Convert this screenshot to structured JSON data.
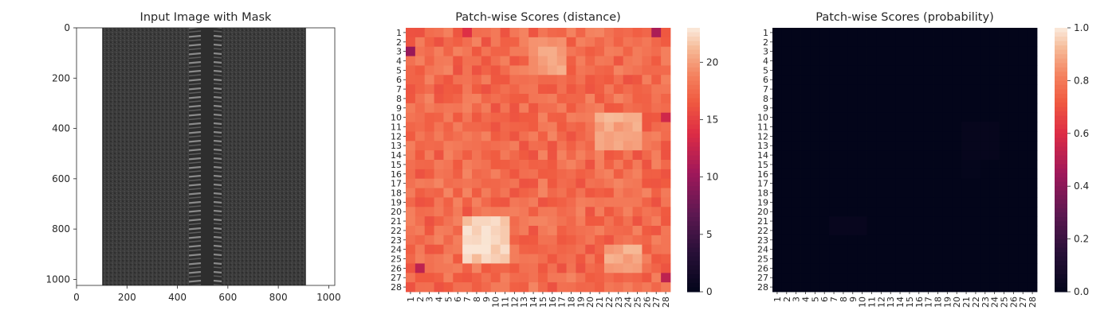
{
  "figure": {
    "panels": [
      {
        "title": "Input Image with Mask"
      },
      {
        "title": "Patch-wise Scores (distance)"
      },
      {
        "title": "Patch-wise Scores (probability)"
      }
    ]
  },
  "chart_data": [
    {
      "type": "image",
      "title": "Input Image with Mask",
      "xlim": [
        0,
        1024
      ],
      "ylim": [
        1024,
        0
      ],
      "x_ticks": [
        0,
        200,
        400,
        600,
        800,
        1000
      ],
      "y_ticks": [
        0,
        200,
        400,
        600,
        800,
        1000
      ],
      "image_subject": "black zipper tape with metal coil teeth down the center",
      "content_x_range": [
        105,
        905
      ],
      "coil_x_range": [
        445,
        575
      ]
    },
    {
      "type": "heatmap",
      "title": "Patch-wise Scores (distance)",
      "x_categories": [
        "1",
        "2",
        "3",
        "4",
        "5",
        "6",
        "7",
        "8",
        "9",
        "10",
        "11",
        "12",
        "13",
        "14",
        "15",
        "16",
        "17",
        "18",
        "19",
        "20",
        "21",
        "22",
        "23",
        "24",
        "25",
        "26",
        "27",
        "28"
      ],
      "y_categories": [
        "1",
        "2",
        "3",
        "4",
        "5",
        "6",
        "7",
        "8",
        "9",
        "10",
        "11",
        "12",
        "13",
        "14",
        "15",
        "16",
        "17",
        "18",
        "19",
        "20",
        "21",
        "22",
        "23",
        "24",
        "25",
        "26",
        "27",
        "28"
      ],
      "colorscale": "rocket",
      "vmin": 0,
      "vmax": 23,
      "colorbar_ticks": [
        0,
        5,
        10,
        15,
        20
      ],
      "base_value": 17.5,
      "high_regions": [
        {
          "rows": [
            21,
            25
          ],
          "cols": [
            7,
            11
          ],
          "value": 22
        },
        {
          "rows": [
            10,
            13
          ],
          "cols": [
            21,
            25
          ],
          "value": 20.5
        },
        {
          "rows": [
            2,
            5
          ],
          "cols": [
            14,
            17
          ],
          "value": 20
        },
        {
          "rows": [
            24,
            26
          ],
          "cols": [
            22,
            25
          ],
          "value": 20.5
        }
      ],
      "low_cells": [
        {
          "row": 3,
          "col": 1,
          "value": 10
        },
        {
          "row": 26,
          "col": 2,
          "value": 12
        },
        {
          "row": 1,
          "col": 27,
          "value": 11
        },
        {
          "row": 10,
          "col": 28,
          "value": 13
        },
        {
          "row": 27,
          "col": 28,
          "value": 12
        },
        {
          "row": 1,
          "col": 7,
          "value": 14
        }
      ]
    },
    {
      "type": "heatmap",
      "title": "Patch-wise Scores (probability)",
      "x_categories": [
        "1",
        "2",
        "3",
        "4",
        "5",
        "6",
        "7",
        "8",
        "9",
        "10",
        "11",
        "12",
        "13",
        "14",
        "15",
        "16",
        "17",
        "18",
        "19",
        "20",
        "21",
        "22",
        "23",
        "24",
        "25",
        "26",
        "27",
        "28"
      ],
      "y_categories": [
        "1",
        "2",
        "3",
        "4",
        "5",
        "6",
        "7",
        "8",
        "9",
        "10",
        "11",
        "12",
        "13",
        "14",
        "15",
        "16",
        "17",
        "18",
        "19",
        "20",
        "21",
        "22",
        "23",
        "24",
        "25",
        "26",
        "27",
        "28"
      ],
      "colorscale": "rocket",
      "vmin": 0.0,
      "vmax": 1.0,
      "colorbar_ticks": [
        0.0,
        0.2,
        0.4,
        0.6,
        0.8,
        1.0
      ],
      "base_value": 0.0,
      "faint_regions": [
        {
          "rows": [
            21,
            22
          ],
          "cols": [
            7,
            10
          ],
          "value": 0.02
        },
        {
          "rows": [
            11,
            14
          ],
          "cols": [
            21,
            24
          ],
          "value": 0.015
        },
        {
          "rows": [
            15,
            16
          ],
          "cols": [
            21,
            22
          ],
          "value": 0.01
        }
      ]
    }
  ]
}
